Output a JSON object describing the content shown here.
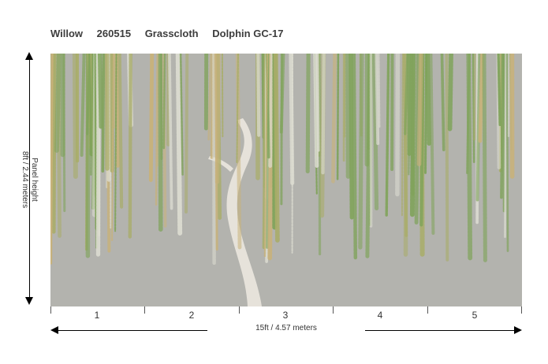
{
  "header": {
    "pattern_name": "Willow",
    "item_number": "260515",
    "material": "Grasscloth",
    "colorway": "Dolphin GC-17"
  },
  "dimensions": {
    "height_title": "Panel height",
    "height_value": "8ft / 2.44 meters",
    "width_value": "15ft  / 4.57 meters"
  },
  "panels": [
    "1",
    "2",
    "3",
    "4",
    "5"
  ],
  "colors": {
    "background": "#b3b3ae",
    "leaf_green": "#7fa35a",
    "leaf_olive": "#a9ad6a",
    "leaf_gold": "#c8b27a",
    "leaf_pale": "#ddddd2",
    "trunk": "#e6e2da"
  }
}
